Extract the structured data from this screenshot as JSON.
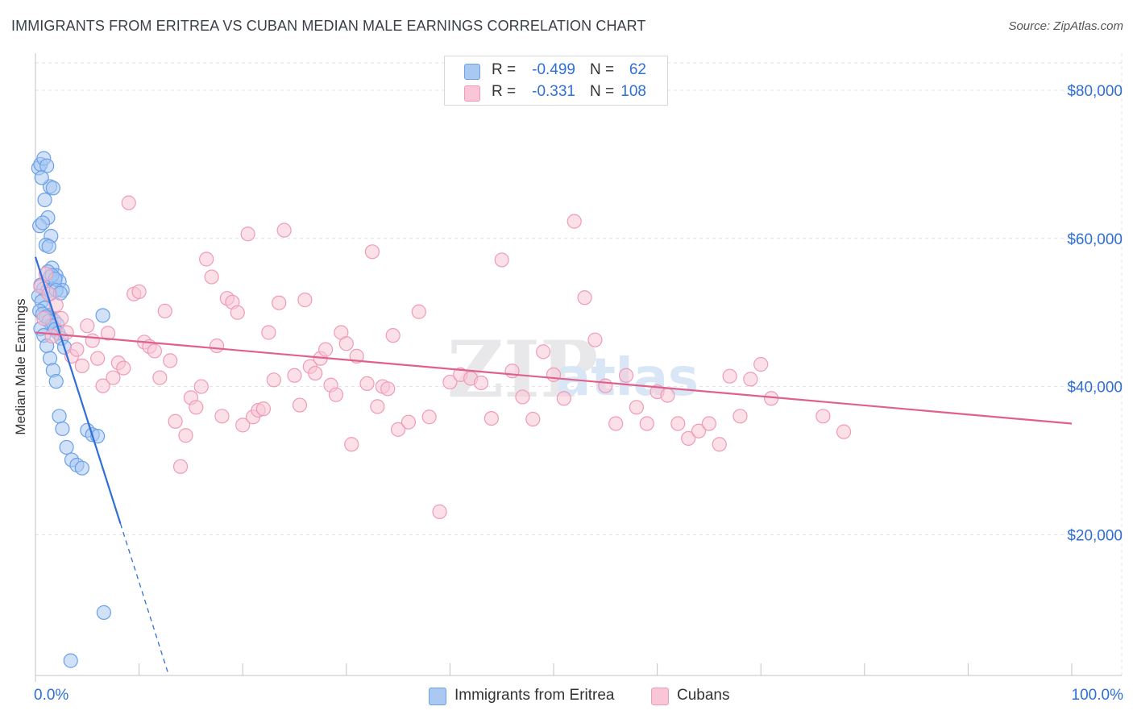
{
  "title": "IMMIGRANTS FROM ERITREA VS CUBAN MEDIAN MALE EARNINGS CORRELATION CHART",
  "source": "Source: ZipAtlas.com",
  "watermark": {
    "zip": "ZIP",
    "atlas": "atlas"
  },
  "legend_top": [
    {
      "r_label": "R =",
      "r_value": "-0.499",
      "n_label": "N =",
      "n_value": "62"
    },
    {
      "r_label": "R =",
      "r_value": "-0.331",
      "n_label": "N =",
      "n_value": "108"
    }
  ],
  "legend_bottom": [
    {
      "label": "Immigrants from Eritrea"
    },
    {
      "label": "Cubans"
    }
  ],
  "chart_data": {
    "type": "scatter",
    "xlabel": "",
    "ylabel": "Median Male Earnings",
    "xlim": [
      0,
      100
    ],
    "ylim": [
      1000,
      85000
    ],
    "x_tick_labels": [
      "0.0%",
      "100.0%"
    ],
    "y_ticks": [
      20000,
      40000,
      60000,
      80000
    ],
    "y_tick_labels": [
      "$20,000",
      "$40,000",
      "$60,000",
      "$80,000"
    ],
    "series": [
      {
        "name": "Immigrants from Eritrea",
        "color": "#6aa0e8",
        "fill": "#a9c8f2",
        "line_color": "#2f6fd6",
        "x": [
          0.3,
          0.5,
          0.8,
          1.1,
          1.4,
          1.7,
          0.6,
          0.9,
          1.2,
          1.5,
          0.4,
          0.7,
          1.0,
          1.3,
          1.6,
          2.0,
          2.3,
          2.6,
          0.5,
          0.8,
          1.1,
          1.4,
          0.3,
          0.6,
          0.9,
          1.2,
          1.5,
          1.8,
          2.1,
          0.4,
          0.7,
          1.0,
          1.3,
          1.6,
          1.9,
          2.2,
          2.5,
          2.8,
          0.5,
          0.8,
          1.1,
          1.4,
          1.7,
          2.0,
          2.3,
          2.6,
          3.0,
          3.5,
          4.0,
          4.5,
          5.0,
          5.5,
          6.0,
          6.5,
          6.6,
          1.2,
          1.4,
          1.6,
          1.9,
          2.0,
          2.4,
          3.4
        ],
        "y": [
          69500,
          70000,
          70800,
          69800,
          67000,
          66800,
          68200,
          65200,
          62800,
          60300,
          61700,
          62100,
          59100,
          58900,
          56000,
          55000,
          54200,
          53000,
          53700,
          53200,
          52800,
          52500,
          52200,
          51500,
          50600,
          49600,
          49300,
          48900,
          48400,
          50200,
          49800,
          49400,
          48800,
          48200,
          47700,
          47200,
          46500,
          45300,
          47800,
          46900,
          45500,
          43800,
          42200,
          40700,
          36000,
          34300,
          31800,
          30100,
          29400,
          29000,
          34100,
          33500,
          33300,
          49600,
          9500,
          55500,
          54800,
          55000,
          54500,
          53000,
          52600,
          3000
        ]
      },
      {
        "name": "Cubans",
        "color": "#f09ab8",
        "fill": "#f8c6d6",
        "line_color": "#e0608c",
        "x": [
          0.5,
          0.8,
          1.0,
          1.3,
          1.6,
          2.0,
          2.5,
          3.0,
          3.5,
          4.0,
          4.5,
          5.0,
          5.5,
          6.0,
          6.5,
          7.0,
          7.5,
          8.0,
          8.5,
          9.0,
          9.5,
          10.0,
          10.5,
          11.0,
          11.5,
          12.0,
          12.5,
          13.0,
          13.5,
          14.0,
          14.5,
          15.0,
          15.5,
          16.0,
          16.5,
          17.0,
          17.5,
          18.0,
          18.5,
          19.0,
          19.5,
          20.0,
          20.5,
          21.0,
          21.5,
          22.0,
          22.5,
          23.0,
          23.5,
          24.0,
          25.0,
          25.5,
          26.0,
          26.5,
          27.0,
          27.5,
          28.0,
          28.5,
          29.0,
          29.5,
          30.0,
          30.5,
          31.0,
          32.0,
          32.5,
          33.0,
          33.5,
          34.0,
          34.5,
          35.0,
          36.0,
          37.0,
          38.0,
          39.0,
          40.0,
          41.0,
          42.0,
          43.0,
          44.0,
          45.0,
          46.0,
          47.0,
          48.0,
          49.0,
          50.0,
          51.0,
          52.0,
          53.0,
          54.0,
          55.0,
          56.0,
          57.0,
          58.0,
          59.0,
          60.0,
          61.0,
          62.0,
          63.0,
          64.0,
          65.0,
          66.0,
          67.0,
          68.0,
          69.0,
          70.0,
          71.0,
          76.0,
          78.0
        ],
        "y": [
          53500,
          49200,
          55200,
          52500,
          46800,
          51000,
          49200,
          47300,
          44100,
          45000,
          42800,
          48200,
          46200,
          43800,
          40100,
          47200,
          41200,
          43200,
          42500,
          64800,
          52500,
          52800,
          46000,
          45400,
          44800,
          41200,
          50200,
          43500,
          35300,
          29200,
          33400,
          38500,
          37200,
          40000,
          57200,
          54800,
          45500,
          36000,
          51900,
          51400,
          50000,
          34800,
          60600,
          35900,
          36800,
          37000,
          47300,
          40900,
          51300,
          61100,
          41500,
          37500,
          51700,
          42700,
          41800,
          43800,
          45000,
          40200,
          38900,
          47300,
          45800,
          32200,
          44100,
          40400,
          58200,
          37300,
          40000,
          39700,
          46900,
          34200,
          35200,
          50100,
          35900,
          23100,
          40600,
          41600,
          41100,
          40500,
          35700,
          57100,
          42100,
          38600,
          35600,
          44700,
          41600,
          38400,
          62300,
          52000,
          46300,
          40100,
          35000,
          41500,
          37200,
          35000,
          39300,
          38800,
          35000,
          33000,
          34000,
          35000,
          32200,
          41400,
          36000,
          41000,
          43000,
          38400,
          36000,
          33900
        ]
      }
    ],
    "trend_lines": [
      {
        "series": "Immigrants from Eritrea",
        "x0": 0,
        "y0": 57500,
        "x1": 8.2,
        "y1": 21500,
        "dash_to_x": 12.8
      },
      {
        "series": "Cubans",
        "x0": 0,
        "y0": 47300,
        "x1": 100,
        "y1": 35000
      }
    ]
  }
}
